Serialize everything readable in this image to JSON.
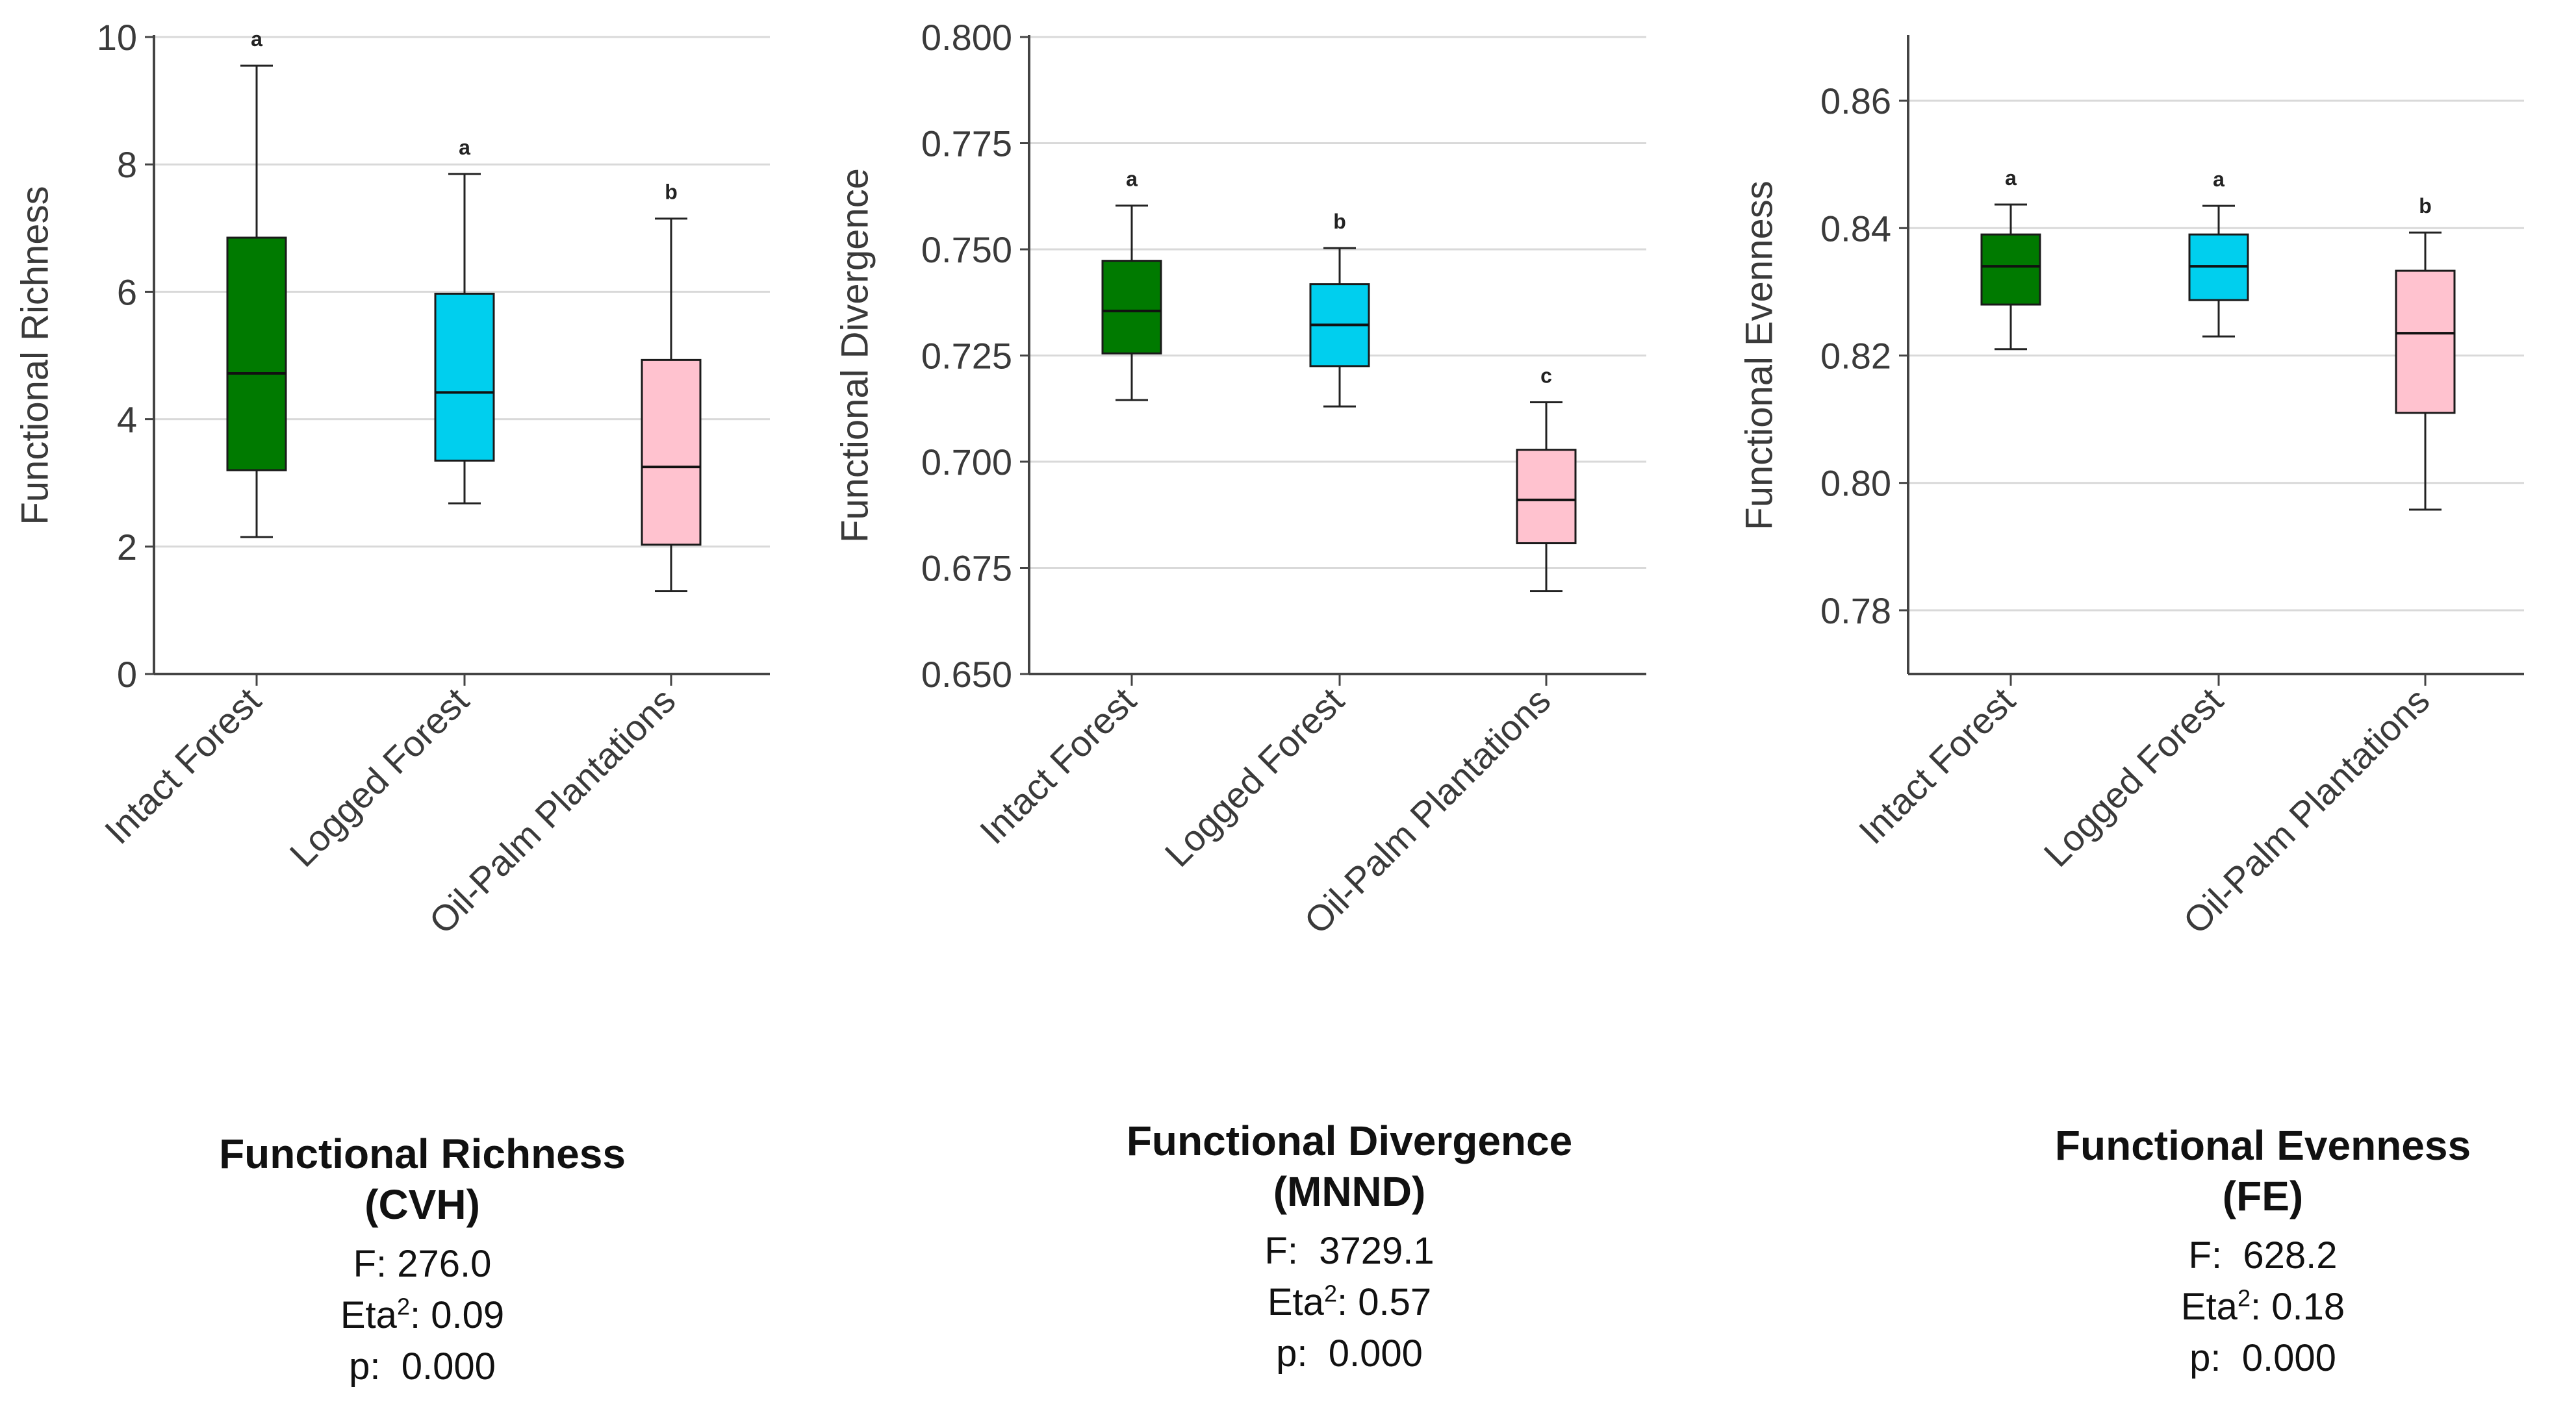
{
  "chart_data": [
    {
      "type": "box",
      "ylabel": "Functional Richness",
      "categories": [
        "Intact Forest",
        "Logged Forest",
        "Oil-Palm Plantations"
      ],
      "ylim": [
        0,
        10
      ],
      "yticks": [
        0,
        2,
        4,
        6,
        8,
        10
      ],
      "tick_labels": [
        "0",
        "2",
        "4",
        "6",
        "8",
        "10"
      ],
      "grid": true,
      "boxes": [
        {
          "category": "Intact Forest",
          "whisker_low": 2.15,
          "q1": 3.2,
          "median": 4.72,
          "q3": 6.85,
          "whisker_high": 9.55,
          "letter": "a",
          "color": "#007a00"
        },
        {
          "category": "Logged Forest",
          "whisker_low": 2.68,
          "q1": 3.35,
          "median": 4.42,
          "q3": 5.97,
          "whisker_high": 7.85,
          "letter": "a",
          "color": "#00cfee"
        },
        {
          "category": "Oil-Palm Plantations",
          "whisker_low": 1.3,
          "q1": 2.03,
          "median": 3.25,
          "q3": 4.93,
          "whisker_high": 7.15,
          "letter": "b",
          "color": "#ffc2cf"
        }
      ]
    },
    {
      "type": "box",
      "ylabel": "Functional Divergence",
      "categories": [
        "Intact Forest",
        "Logged Forest",
        "Oil-Palm Plantations"
      ],
      "ylim": [
        0.65,
        0.8
      ],
      "yticks": [
        0.65,
        0.675,
        0.7,
        0.725,
        0.75,
        0.775,
        0.8
      ],
      "tick_labels": [
        "0.650",
        "0.675",
        "0.700",
        "0.725",
        "0.750",
        "0.775",
        "0.800"
      ],
      "grid": true,
      "boxes": [
        {
          "category": "Intact Forest",
          "whisker_low": 0.7145,
          "q1": 0.7255,
          "median": 0.7355,
          "q3": 0.7473,
          "whisker_high": 0.7603,
          "letter": "a",
          "color": "#007a00"
        },
        {
          "category": "Logged Forest",
          "whisker_low": 0.713,
          "q1": 0.7225,
          "median": 0.7322,
          "q3": 0.7418,
          "whisker_high": 0.7503,
          "letter": "b",
          "color": "#00cfee"
        },
        {
          "category": "Oil-Palm Plantations",
          "whisker_low": 0.6695,
          "q1": 0.6808,
          "median": 0.691,
          "q3": 0.7028,
          "whisker_high": 0.714,
          "letter": "c",
          "color": "#ffc2cf"
        }
      ]
    },
    {
      "type": "box",
      "ylabel": "Functional Evenness",
      "categories": [
        "Intact Forest",
        "Logged Forest",
        "Oil-Palm Plantations"
      ],
      "ylim": [
        0.77,
        0.87
      ],
      "yticks": [
        0.78,
        0.8,
        0.82,
        0.84,
        0.86
      ],
      "tick_labels": [
        "0.78",
        "0.80",
        "0.82",
        "0.84",
        "0.86"
      ],
      "grid": true,
      "boxes": [
        {
          "category": "Intact Forest",
          "whisker_low": 0.821,
          "q1": 0.828,
          "median": 0.834,
          "q3": 0.839,
          "whisker_high": 0.8437,
          "letter": "a",
          "color": "#007a00"
        },
        {
          "category": "Logged Forest",
          "whisker_low": 0.823,
          "q1": 0.8287,
          "median": 0.834,
          "q3": 0.839,
          "whisker_high": 0.8435,
          "letter": "a",
          "color": "#00cfee"
        },
        {
          "category": "Oil-Palm Plantations",
          "whisker_low": 0.7958,
          "q1": 0.811,
          "median": 0.8235,
          "q3": 0.8333,
          "whisker_high": 0.8393,
          "letter": "b",
          "color": "#ffc2cf"
        }
      ]
    }
  ],
  "captions": [
    {
      "title_line1": "Functional Richness",
      "title_line2": "(CVH)",
      "f_label": "F:",
      "f_value": "276.0",
      "eta_label": "Eta",
      "eta_sup": "2",
      "eta_colon": ":",
      "eta_value": "0.09",
      "p_label": "p:",
      "p_value": "0.000"
    },
    {
      "title_line1": "Functional Divergence",
      "title_line2": "(MNND)",
      "f_label": "F:",
      "f_value": "3729.1",
      "eta_label": "Eta",
      "eta_sup": "2",
      "eta_colon": ":",
      "eta_value": "0.57",
      "p_label": "p:",
      "p_value": "0.000"
    },
    {
      "title_line1": "Functional Evenness",
      "title_line2": "(FE)",
      "f_label": "F:",
      "f_value": "628.2",
      "eta_label": "Eta",
      "eta_sup": "2",
      "eta_colon": ":",
      "eta_value": "0.18",
      "p_label": "p:",
      "p_value": "0.000"
    }
  ]
}
